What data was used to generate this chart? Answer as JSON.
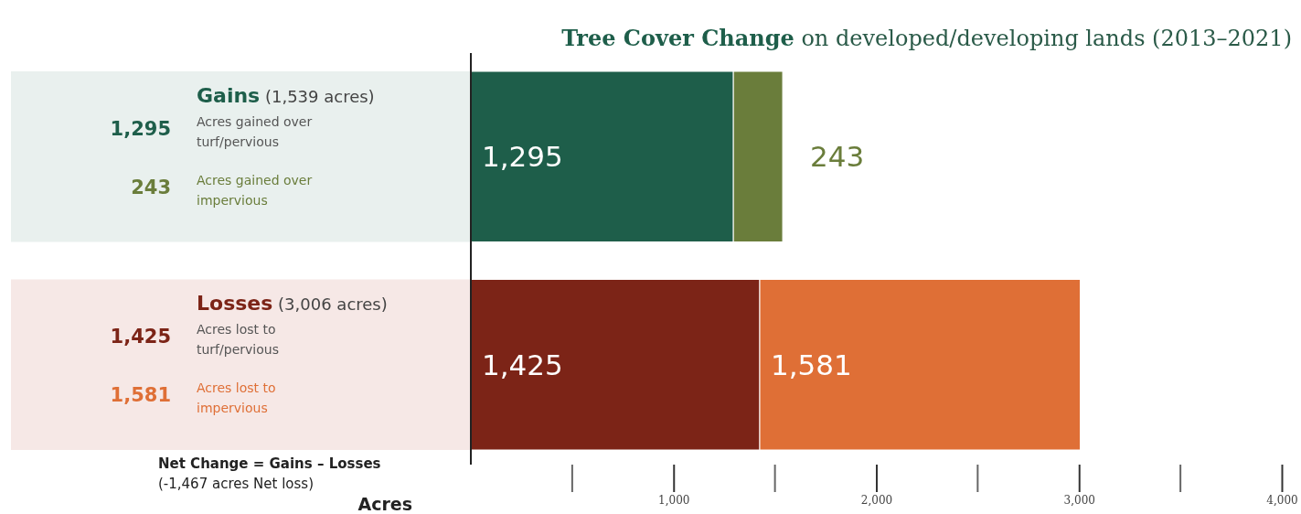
{
  "chart_data": {
    "type": "bar",
    "orientation": "horizontal",
    "stacked": true,
    "title": "Tree Cover Change on developed/developing lands (2013–2021)",
    "categories": [
      "Gains (1,539 acres)",
      "Losses (3,006 acres)"
    ],
    "series": [
      {
        "colors": [
          "#1e5e4a",
          "#7c2417"
        ],
        "values": [
          1295,
          1425
        ],
        "value_labels": [
          "1,295",
          "1,425"
        ]
      },
      {
        "colors": [
          "#6a7d3b",
          "#df6f36"
        ],
        "values": [
          243,
          1581
        ],
        "value_labels": [
          "243",
          "1,581"
        ]
      }
    ],
    "xlabel": "Acres",
    "xlim": [
      0,
      4000
    ],
    "xticks": [
      {
        "value": 0,
        "label": null
      },
      {
        "value": 1000,
        "label": "1,000"
      },
      {
        "value": 2000,
        "label": "2,000"
      },
      {
        "value": 3000,
        "label": "3,000"
      },
      {
        "value": 4000,
        "label": "4,000"
      }
    ],
    "annotations": [
      "1,295",
      "Acres gained over turf/pervious",
      "243",
      "Acres gained over impervious",
      "1,425",
      "Acres lost to turf/pervious",
      "1,581",
      "Acres lost to impervious",
      "Net Change = Gains – Losses",
      "(-1,467 acres Net loss)"
    ],
    "data_labels": true
  }
}
